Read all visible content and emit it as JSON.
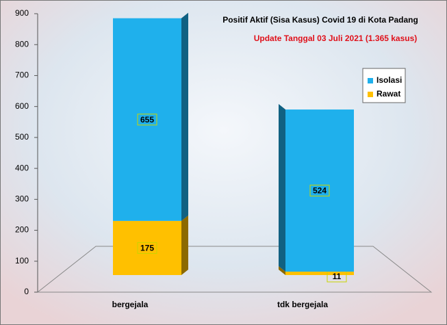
{
  "chart_data": {
    "type": "stacked_bar_3d",
    "title": "Positif Aktif  (Sisa Kasus) Covid 19 di Kota Padang",
    "subtitle": "Update Tanggal 03 Juli 2021  (1.365  kasus)",
    "categories": [
      "bergejala",
      "tdk bergejala"
    ],
    "series": [
      {
        "name": "Rawat",
        "color": "#ffc000",
        "values": [
          175,
          11
        ]
      },
      {
        "name": "Isolasi",
        "color": "#1fb0ec",
        "values": [
          655,
          524
        ]
      }
    ],
    "ylim": [
      0,
      900
    ],
    "yticks": [
      0,
      100,
      200,
      300,
      400,
      500,
      600,
      700,
      800,
      900
    ],
    "legend": "right"
  }
}
